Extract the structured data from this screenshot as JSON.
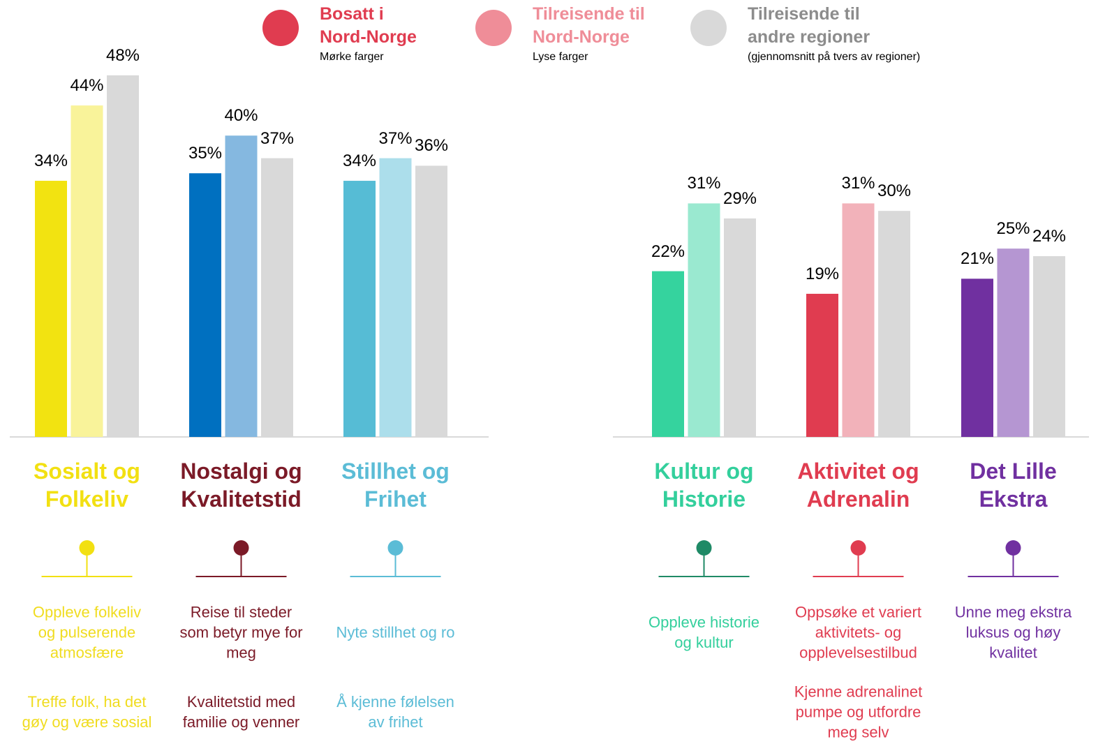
{
  "legend": [
    {
      "name": "Bosatt i\nNord-Norge",
      "note": "Mørke farger",
      "color": "#e03c50"
    },
    {
      "name": "Tilreisende til\nNord-Norge",
      "note": "Lyse farger",
      "color": "#ef8d98"
    },
    {
      "name": "Tilreisende til\nandre regioner",
      "note": "(gjennomsnitt på tvers av regioner)",
      "color": "#d9d9d9",
      "text_color": "#8c8c8c"
    }
  ],
  "chart_data": [
    {
      "type": "bar",
      "ylim": [
        0,
        58
      ],
      "categories": [
        "Sosialt og\nFolkeliv",
        "Nostalgi og\nKvalitetstid",
        "Stillhet og\nFrihet"
      ],
      "category_colors": [
        "#f2e012",
        "#7b1a27",
        "#5bbcd6"
      ],
      "text_colors": [
        "#f0dc20",
        "#7b1a27",
        "#5bbcd6"
      ],
      "bar_colors": [
        [
          "#f2e311",
          "#f9f39a",
          "#d9d9d9"
        ],
        [
          "#0070c0",
          "#85b8e0",
          "#d9d9d9"
        ],
        [
          "#56bcd5",
          "#acdeeb",
          "#d9d9d9"
        ]
      ],
      "series": [
        {
          "values": [
            34,
            35,
            34
          ],
          "value_labels": [
            "34%",
            "35%",
            "34%"
          ]
        },
        {
          "values": [
            44,
            40,
            37
          ],
          "value_labels": [
            "44%",
            "40%",
            "37%"
          ]
        },
        {
          "values": [
            48,
            37,
            36
          ],
          "value_labels": [
            "48%",
            "37%",
            "36%"
          ]
        }
      ],
      "descriptions": [
        [
          "Oppleve folkeliv\nog pulserende\natmosfære",
          "Treffe folk, ha det\ngøy og være sosial"
        ],
        [
          "Reise til steder\nsom betyr mye for\nmeg",
          "Kvalitetstid med\nfamilie og venner"
        ],
        [
          "Nyte stillhet og ro",
          "Å kjenne følelsen\nav frihet"
        ]
      ]
    },
    {
      "type": "bar",
      "ylim": [
        0,
        58
      ],
      "categories": [
        "Kultur og\nHistorie",
        "Aktivitet og\nAdrenalin",
        "Det Lille\nEkstra"
      ],
      "category_colors": [
        "#1f8a66",
        "#e03c50",
        "#7030a0"
      ],
      "title_colors": [
        "#33cf9c",
        "#e03c50",
        "#7030a0"
      ],
      "text_colors": [
        "#33cf9c",
        "#e03c50",
        "#7030a0"
      ],
      "bar_colors": [
        [
          "#35d39e",
          "#9ae9d0",
          "#d9d9d9"
        ],
        [
          "#e03c50",
          "#f2b2ba",
          "#d9d9d9"
        ],
        [
          "#7030a0",
          "#b596d2",
          "#d9d9d9"
        ]
      ],
      "series": [
        {
          "values": [
            22,
            19,
            21
          ],
          "value_labels": [
            "22%",
            "19%",
            "21%"
          ]
        },
        {
          "values": [
            31,
            31,
            25
          ],
          "value_labels": [
            "31%",
            "31%",
            "25%"
          ]
        },
        {
          "values": [
            29,
            30,
            24
          ],
          "value_labels": [
            "29%",
            "30%",
            "24%"
          ]
        }
      ],
      "descriptions": [
        [
          "Oppleve historie\nog kultur"
        ],
        [
          "Oppsøke et variert\naktivitets- og\nopplevelsestilbud",
          "Kjenne adrenalinet\npumpe og utfordre\nmeg selv"
        ],
        [
          "Unne meg ekstra\nluksus og høy\nkvalitet"
        ]
      ]
    }
  ]
}
